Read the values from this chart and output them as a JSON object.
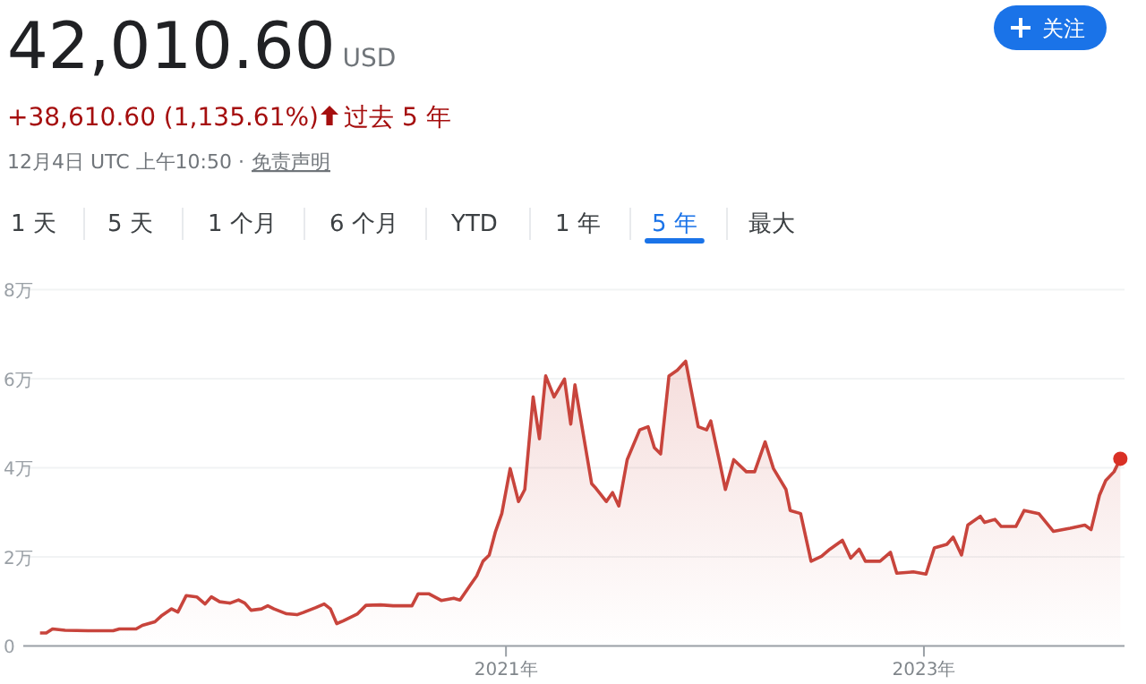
{
  "chart_data": {
    "type": "area",
    "title": "42,010.60",
    "annotations": [
      "USD",
      "+38,610.60 (1,135.61%)",
      "过去 5 年",
      "12月4日 UTC 上午10:50 ·",
      "免责声明",
      "1 天",
      "5 天",
      "1 个月",
      "6 个月",
      "YTD",
      "1 年",
      "5 年",
      "最大",
      "关注"
    ],
    "xlim": [
      2018.69,
      2023.96
    ],
    "xticks": [
      {
        "value": 2021,
        "label": "2021年"
      },
      {
        "value": 2023,
        "label": "2023年"
      }
    ],
    "ylim": [
      0,
      8
    ],
    "yticks": [
      0,
      {
        "value": 2,
        "label": "2万"
      },
      {
        "value": 4,
        "label": "4万"
      },
      {
        "value": 6,
        "label": "6万"
      },
      {
        "value": 8,
        "label": "8万"
      }
    ],
    "grid": "y",
    "series": [
      {
        "color": "#c8443c",
        "x": [
          2018.77,
          2018.8,
          2018.83,
          2018.89,
          2019.0,
          2019.12,
          2019.15,
          2019.23,
          2019.26,
          2019.32,
          2019.35,
          2019.4,
          2019.43,
          2019.47,
          2019.52,
          2019.56,
          2019.59,
          2019.63,
          2019.68,
          2019.72,
          2019.75,
          2019.78,
          2019.83,
          2019.86,
          2019.89,
          2019.95,
          2020.0,
          2020.03,
          2020.09,
          2020.13,
          2020.16,
          2020.19,
          2020.22,
          2020.29,
          2020.33,
          2020.4,
          2020.46,
          2020.55,
          2020.58,
          2020.63,
          2020.69,
          2020.75,
          2020.78,
          2020.83,
          2020.86,
          2020.89,
          2020.92,
          2020.95,
          2020.98,
          2021.02,
          2021.06,
          2021.09,
          2021.13,
          2021.16,
          2021.19,
          2021.23,
          2021.28,
          2021.31,
          2021.33,
          2021.41,
          2021.43,
          2021.48,
          2021.51,
          2021.54,
          2021.58,
          2021.64,
          2021.68,
          2021.71,
          2021.74,
          2021.78,
          2021.82,
          2021.86,
          2021.92,
          2021.96,
          2021.98,
          2022.02,
          2022.05,
          2022.09,
          2022.15,
          2022.19,
          2022.24,
          2022.28,
          2022.34,
          2022.36,
          2022.41,
          2022.46,
          2022.51,
          2022.55,
          2022.61,
          2022.65,
          2022.69,
          2022.72,
          2022.79,
          2022.84,
          2022.87,
          2022.95,
          2023.01,
          2023.05,
          2023.11,
          2023.14,
          2023.18,
          2023.21,
          2023.27,
          2023.29,
          2023.34,
          2023.37,
          2023.44,
          2023.48,
          2023.55,
          2023.62,
          2023.7,
          2023.77,
          2023.8,
          2023.84,
          2023.87,
          2023.91,
          2023.94
        ],
        "values": [
          0.29,
          0.29,
          0.38,
          0.35,
          0.34,
          0.34,
          0.38,
          0.38,
          0.46,
          0.54,
          0.67,
          0.83,
          0.76,
          1.13,
          1.1,
          0.94,
          1.1,
          0.99,
          0.96,
          1.03,
          0.96,
          0.8,
          0.83,
          0.9,
          0.83,
          0.72,
          0.7,
          0.75,
          0.86,
          0.94,
          0.83,
          0.5,
          0.56,
          0.72,
          0.91,
          0.92,
          0.9,
          0.9,
          1.17,
          1.17,
          1.02,
          1.07,
          1.03,
          1.37,
          1.57,
          1.9,
          2.04,
          2.57,
          2.97,
          3.98,
          3.24,
          3.51,
          5.59,
          4.65,
          6.06,
          5.59,
          5.99,
          4.98,
          5.86,
          3.64,
          3.54,
          3.24,
          3.44,
          3.14,
          4.18,
          4.85,
          4.92,
          4.45,
          4.31,
          6.06,
          6.19,
          6.39,
          4.92,
          4.85,
          5.05,
          4.18,
          3.51,
          4.18,
          3.91,
          3.91,
          4.58,
          3.98,
          3.51,
          3.04,
          2.97,
          1.9,
          2.01,
          2.17,
          2.37,
          1.97,
          2.17,
          1.9,
          1.9,
          2.1,
          1.63,
          1.66,
          1.61,
          2.2,
          2.28,
          2.44,
          2.04,
          2.71,
          2.91,
          2.77,
          2.84,
          2.68,
          2.68,
          3.04,
          2.97,
          2.57,
          2.64,
          2.71,
          2.61,
          3.38,
          3.71,
          3.91,
          4.2
        ]
      },
      {
        "type": "scatter",
        "color": "#d93025",
        "marker": "circle",
        "x": [
          2023.94
        ],
        "values": [
          4.2
        ]
      }
    ]
  }
}
